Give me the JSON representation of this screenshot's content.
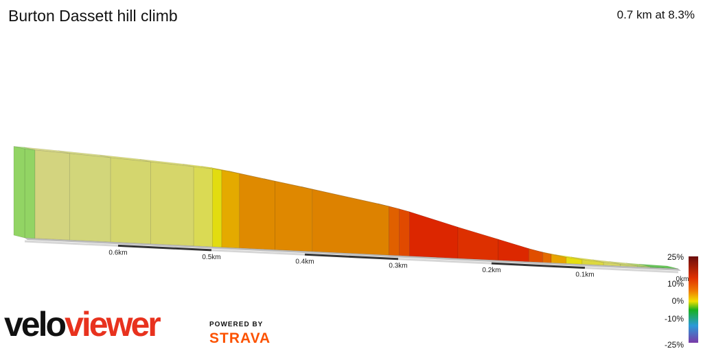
{
  "header": {
    "title": "Burton Dassett hill climb",
    "summary": "0.7 km at 8.3%"
  },
  "branding": {
    "logo_velo": "velo",
    "logo_viewer": "viewer",
    "powered_by": "POWERED BY",
    "strava": "STRAVA"
  },
  "legend": {
    "labels": [
      "25%",
      "10%",
      "0%",
      "-10%",
      "-25%"
    ],
    "colors": [
      "#6a0d0d",
      "#e03000",
      "#f07c00",
      "#f0e000",
      "#18b020",
      "#2a9ad8",
      "#7a3aa8"
    ]
  },
  "colors": {
    "gentle": "#d2d67a",
    "steep": "#dc2400"
  },
  "chart_data": {
    "type": "area",
    "xlabel": "",
    "ylabel": "",
    "x_reversed": true,
    "x_ticks": [
      "0.6km",
      "0.5km",
      "0.4km",
      "0.3km",
      "0.2km",
      "0.1km",
      "0km"
    ],
    "x_tick_values": [
      0.6,
      0.5,
      0.4,
      0.3,
      0.2,
      0.1,
      0.0
    ],
    "xlim": [
      0,
      0.7
    ],
    "segments": [
      {
        "start_km": 0.7,
        "end_km": 0.689,
        "gradient": 2.0,
        "color": "#92d464"
      },
      {
        "start_km": 0.689,
        "end_km": 0.652,
        "gradient": 2.6,
        "color": "#d3d47f"
      },
      {
        "start_km": 0.652,
        "end_km": 0.608,
        "gradient": 2.8,
        "color": "#d2d67a"
      },
      {
        "start_km": 0.608,
        "end_km": 0.565,
        "gradient": 3.0,
        "color": "#d4d66e"
      },
      {
        "start_km": 0.565,
        "end_km": 0.519,
        "gradient": 3.2,
        "color": "#d6d66a"
      },
      {
        "start_km": 0.519,
        "end_km": 0.499,
        "gradient": 3.6,
        "color": "#dada54"
      },
      {
        "start_km": 0.499,
        "end_km": 0.489,
        "gradient": 5.0,
        "color": "#e2dc10"
      },
      {
        "start_km": 0.489,
        "end_km": 0.47,
        "gradient": 7.2,
        "color": "#e4aa00"
      },
      {
        "start_km": 0.47,
        "end_km": 0.432,
        "gradient": 8.6,
        "color": "#df8a00"
      },
      {
        "start_km": 0.432,
        "end_km": 0.392,
        "gradient": 8.4,
        "color": "#df8800"
      },
      {
        "start_km": 0.392,
        "end_km": 0.31,
        "gradient": 8.8,
        "color": "#dd8200"
      },
      {
        "start_km": 0.31,
        "end_km": 0.299,
        "gradient": 10.4,
        "color": "#e06000"
      },
      {
        "start_km": 0.299,
        "end_km": 0.288,
        "gradient": 11.8,
        "color": "#e04a00"
      },
      {
        "start_km": 0.288,
        "end_km": 0.236,
        "gradient": 13.6,
        "color": "#dc2600"
      },
      {
        "start_km": 0.236,
        "end_km": 0.193,
        "gradient": 12.8,
        "color": "#dd3000"
      },
      {
        "start_km": 0.193,
        "end_km": 0.16,
        "gradient": 13.0,
        "color": "#dc2800"
      },
      {
        "start_km": 0.16,
        "end_km": 0.145,
        "gradient": 11.0,
        "color": "#e04e00"
      },
      {
        "start_km": 0.145,
        "end_km": 0.136,
        "gradient": 9.8,
        "color": "#e46a00"
      },
      {
        "start_km": 0.136,
        "end_km": 0.12,
        "gradient": 7.6,
        "color": "#e8a400"
      },
      {
        "start_km": 0.12,
        "end_km": 0.103,
        "gradient": 5.0,
        "color": "#e6de10"
      },
      {
        "start_km": 0.103,
        "end_km": 0.08,
        "gradient": 4.0,
        "color": "#dcd840"
      },
      {
        "start_km": 0.08,
        "end_km": 0.062,
        "gradient": 3.2,
        "color": "#d6d664"
      },
      {
        "start_km": 0.062,
        "end_km": 0.044,
        "gradient": 2.4,
        "color": "#c9d26a"
      },
      {
        "start_km": 0.044,
        "end_km": 0.03,
        "gradient": 1.6,
        "color": "#a8d060"
      },
      {
        "start_km": 0.03,
        "end_km": 0.0,
        "gradient": 1.0,
        "color": "#58c048"
      }
    ]
  }
}
